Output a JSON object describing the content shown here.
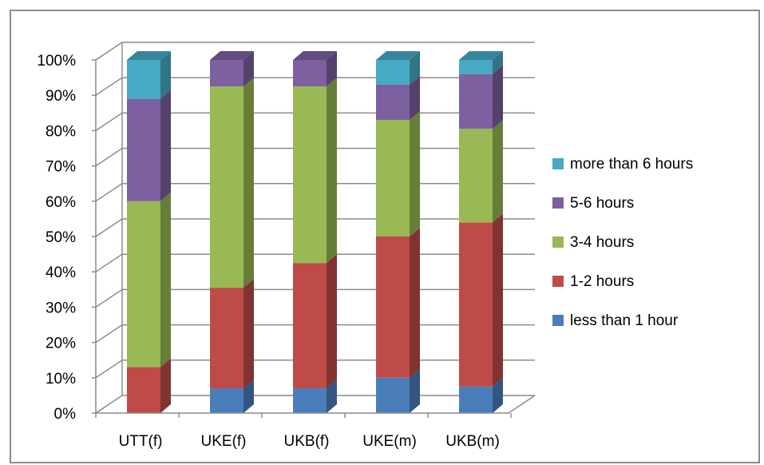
{
  "chart_data": {
    "type": "bar",
    "stacked": true,
    "percent": true,
    "three_d": true,
    "categories": [
      "UTT(f)",
      "UKE(f)",
      "UKB(f)",
      "UKE(m)",
      "UKB(m)"
    ],
    "series": [
      {
        "name": "less than 1 hour",
        "color": "#4a7ebb",
        "values": [
          0,
          7,
          7,
          10,
          7.5
        ]
      },
      {
        "name": "1-2 hours",
        "color": "#be4b48",
        "values": [
          13,
          28.5,
          35.5,
          40,
          46.5
        ]
      },
      {
        "name": "3-4 hours",
        "color": "#98b954",
        "values": [
          47,
          57,
          50,
          33,
          26.5
        ]
      },
      {
        "name": "5-6 hours",
        "color": "#7d60a0",
        "values": [
          29,
          7.5,
          7.5,
          10,
          15.5
        ]
      },
      {
        "name": "more than 6 hours",
        "color": "#46aac5",
        "values": [
          11,
          0,
          0,
          7,
          4
        ]
      }
    ],
    "y_ticks": [
      "0%",
      "10%",
      "20%",
      "30%",
      "40%",
      "50%",
      "60%",
      "70%",
      "80%",
      "90%",
      "100%"
    ],
    "ylim": [
      0,
      100
    ],
    "grid": true,
    "legend_position": "right"
  }
}
